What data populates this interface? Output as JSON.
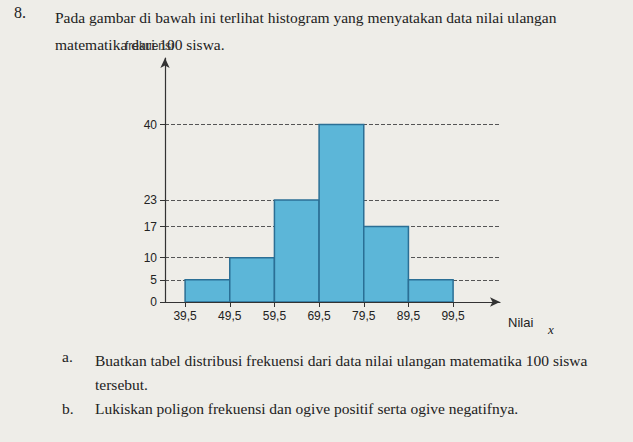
{
  "chart_data": {
    "type": "histogram",
    "title": "Pada gambar di bawah ini terlihat histogram yang menyatakan data nilai ulangan matematika dari 100 siswa.",
    "annotations": [
      "8.",
      "a.",
      "Buatkan tabel distribusi frekuensi dari data nilai ulangan matematika 100 siswa tersebut.",
      "b.",
      "Lukiskan poligon frekuensi dan ogive positif serta ogive negatifnya.",
      "x"
    ],
    "x_label": "Nilai",
    "y_label": "frekuensi",
    "bins": [
      39.5,
      49.5,
      59.5,
      69.5,
      79.5,
      89.5,
      99.5
    ],
    "values": [
      5,
      10,
      23,
      40,
      17,
      5
    ],
    "color": "#5cb6d8",
    "xlim": [
      35,
      110
    ],
    "xticks": [
      {
        "value": 39.5,
        "label": "39,5"
      },
      {
        "value": 49.5,
        "label": "49,5"
      },
      {
        "value": 59.5,
        "label": "59,5"
      },
      {
        "value": 69.5,
        "label": "69,5"
      },
      {
        "value": 79.5,
        "label": "79,5"
      },
      {
        "value": 89.5,
        "label": "89,5"
      },
      {
        "value": 99.5,
        "label": "99,5"
      }
    ],
    "ylim": [
      0,
      55
    ],
    "yticks": [
      0,
      5,
      10,
      17,
      23,
      40
    ],
    "grid": true
  }
}
